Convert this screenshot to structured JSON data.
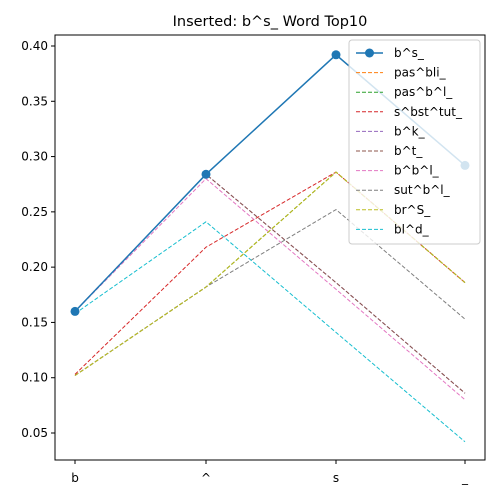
{
  "chart_data": {
    "type": "line",
    "title": "Inserted: b^s_    Word Top10",
    "xlabel": "",
    "ylabel": "",
    "categories": [
      "b",
      "^",
      "s",
      "_"
    ],
    "ylim": [
      0.025,
      0.41
    ],
    "yticks": [
      0.05,
      0.1,
      0.15,
      0.2,
      0.25,
      0.3,
      0.35,
      0.4
    ],
    "ytick_labels": [
      "0.05",
      "0.10",
      "0.15",
      "0.20",
      "0.25",
      "0.30",
      "0.35",
      "0.40"
    ],
    "grid": false,
    "legend_position": "top-right",
    "series": [
      {
        "name": "b^s_",
        "values": [
          0.16,
          0.284,
          0.392,
          0.292
        ],
        "color": "#1f77b4",
        "style": "solid",
        "marker": "circle"
      },
      {
        "name": "pas^bli_",
        "values": [
          0.102,
          0.182,
          0.286,
          0.186
        ],
        "color": "#ff7f0e",
        "style": "dashed"
      },
      {
        "name": "pas^b^l_",
        "values": [
          0.102,
          0.182,
          0.286,
          0.186
        ],
        "color": "#2ca02c",
        "style": "dashed"
      },
      {
        "name": "s^bst^tut_",
        "values": [
          0.103,
          0.218,
          0.286,
          0.186
        ],
        "color": "#d62728",
        "style": "dashed"
      },
      {
        "name": "b^k_",
        "values": [
          0.16,
          0.284,
          0.186,
          0.086
        ],
        "color": "#9467bd",
        "style": "dashed"
      },
      {
        "name": "b^t_",
        "values": [
          0.16,
          0.284,
          0.186,
          0.086
        ],
        "color": "#8c564b",
        "style": "dashed"
      },
      {
        "name": "b^b^l_",
        "values": [
          0.16,
          0.28,
          0.18,
          0.08
        ],
        "color": "#e377c2",
        "style": "dashed"
      },
      {
        "name": "sut^b^l_",
        "values": [
          0.102,
          0.182,
          0.252,
          0.153
        ],
        "color": "#7f7f7f",
        "style": "dashed"
      },
      {
        "name": "br^S_",
        "values": [
          0.102,
          0.182,
          0.286,
          0.186
        ],
        "color": "#bcbd22",
        "style": "dashed"
      },
      {
        "name": "bl^d_",
        "values": [
          0.158,
          0.241,
          0.141,
          0.042
        ],
        "color": "#17becf",
        "style": "dashed"
      }
    ]
  }
}
